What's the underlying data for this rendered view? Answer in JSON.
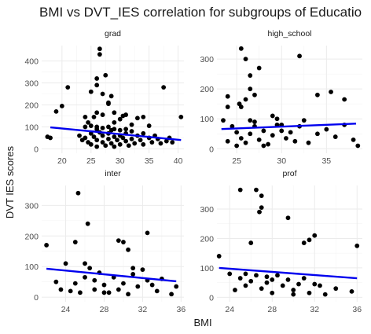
{
  "chart_data": {
    "type": "scatter",
    "title": "BMI vs DVT_IES correlation for subgroups of Educatio",
    "xlabel": "BMI",
    "ylabel": "DVT IES scores",
    "point_color": "#000000",
    "fit_color": "#0000ee",
    "grid": true,
    "facets": [
      {
        "label": "grad",
        "xlim": [
          16.5,
          41
        ],
        "ylim": [
          -20,
          470
        ],
        "x_ticks": [
          20,
          25,
          30,
          35,
          40
        ],
        "y_ticks": [
          0,
          100,
          200,
          300,
          400
        ],
        "fit": {
          "x": [
            18,
            40.5
          ],
          "y": [
            98,
            40
          ]
        },
        "points": [
          [
            18,
            50
          ],
          [
            19,
            170
          ],
          [
            21,
            280
          ],
          [
            20,
            195
          ],
          [
            24,
            145
          ],
          [
            25,
            260
          ],
          [
            26,
            290
          ],
          [
            26,
            320
          ],
          [
            26.5,
            430
          ],
          [
            26.5,
            455
          ],
          [
            27.5,
            335
          ],
          [
            27,
            250
          ],
          [
            28,
            210
          ],
          [
            28,
            205
          ],
          [
            28.5,
            240
          ],
          [
            29,
            165
          ],
          [
            26,
            165
          ],
          [
            27,
            155
          ],
          [
            25.5,
            145
          ],
          [
            24.5,
            120
          ],
          [
            29,
            120
          ],
          [
            30,
            135
          ],
          [
            30.5,
            150
          ],
          [
            31,
            155
          ],
          [
            33,
            140
          ],
          [
            34,
            145
          ],
          [
            37.5,
            280
          ],
          [
            40.5,
            145
          ],
          [
            32,
            110
          ],
          [
            35,
            105
          ],
          [
            24,
            100
          ],
          [
            25,
            105
          ],
          [
            26,
            100
          ],
          [
            27,
            95
          ],
          [
            28,
            100
          ],
          [
            29,
            90
          ],
          [
            30,
            85
          ],
          [
            31,
            90
          ],
          [
            26,
            90
          ],
          [
            28.5,
            85
          ],
          [
            23,
            60
          ],
          [
            23.5,
            40
          ],
          [
            24,
            50
          ],
          [
            24.5,
            30
          ],
          [
            25,
            70
          ],
          [
            25,
            20
          ],
          [
            25.5,
            55
          ],
          [
            26,
            40
          ],
          [
            26,
            10
          ],
          [
            26.5,
            75
          ],
          [
            27,
            30
          ],
          [
            27,
            60
          ],
          [
            27.5,
            15
          ],
          [
            28,
            45
          ],
          [
            28,
            70
          ],
          [
            28.5,
            25
          ],
          [
            29,
            55
          ],
          [
            29,
            10
          ],
          [
            29.5,
            40
          ],
          [
            30,
            60
          ],
          [
            30,
            20
          ],
          [
            30.5,
            50
          ],
          [
            31,
            35
          ],
          [
            31,
            70
          ],
          [
            31.5,
            15
          ],
          [
            32,
            45
          ],
          [
            32,
            80
          ],
          [
            32.5,
            25
          ],
          [
            33,
            60
          ],
          [
            33.5,
            40
          ],
          [
            34,
            20
          ],
          [
            34,
            70
          ],
          [
            35,
            50
          ],
          [
            35.5,
            30
          ],
          [
            36,
            60
          ],
          [
            36.5,
            45
          ],
          [
            37,
            25
          ],
          [
            38,
            35
          ],
          [
            38.5,
            50
          ],
          [
            39,
            30
          ],
          [
            17.5,
            55
          ]
        ]
      },
      {
        "label": "high_school",
        "xlim": [
          22.8,
          39
        ],
        "ylim": [
          -15,
          345
        ],
        "x_ticks": [
          25,
          30,
          35
        ],
        "y_ticks": [
          0,
          100,
          200,
          300
        ],
        "fit": {
          "x": [
            23.3,
            38.3
          ],
          "y": [
            66,
            84
          ]
        },
        "points": [
          [
            25.5,
            335
          ],
          [
            26,
            300
          ],
          [
            26.5,
            245
          ],
          [
            27.5,
            270
          ],
          [
            32,
            310
          ],
          [
            24,
            175
          ],
          [
            25.5,
            140
          ],
          [
            25.3,
            150
          ],
          [
            26,
            165
          ],
          [
            26.5,
            200
          ],
          [
            27,
            180
          ],
          [
            29.5,
            80
          ],
          [
            29,
            110
          ],
          [
            34,
            180
          ],
          [
            35.5,
            190
          ],
          [
            37,
            165
          ],
          [
            23.5,
            95
          ],
          [
            24,
            140
          ],
          [
            24.5,
            75
          ],
          [
            25,
            55
          ],
          [
            25.5,
            35
          ],
          [
            26,
            20
          ],
          [
            26.5,
            50
          ],
          [
            27,
            75
          ],
          [
            27.5,
            30
          ],
          [
            28,
            60
          ],
          [
            28.5,
            15
          ],
          [
            29,
            45
          ],
          [
            30,
            80
          ],
          [
            30.5,
            35
          ],
          [
            31,
            55
          ],
          [
            31.5,
            25
          ],
          [
            32,
            75
          ],
          [
            33,
            20
          ],
          [
            34,
            50
          ],
          [
            35,
            65
          ],
          [
            36,
            40
          ],
          [
            37,
            80
          ],
          [
            38,
            30
          ],
          [
            38.5,
            10
          ],
          [
            28,
            10
          ],
          [
            24,
            25
          ],
          [
            25,
            10
          ],
          [
            27,
            90
          ],
          [
            29.5,
            100
          ],
          [
            32.5,
            95
          ],
          [
            26.5,
            95
          ],
          [
            30,
            60
          ]
        ]
      },
      {
        "label": "inter",
        "xlim": [
          21.5,
          36.3
        ],
        "ylim": [
          -15,
          365
        ],
        "x_ticks": [
          24,
          28,
          32,
          36
        ],
        "y_ticks": [
          0,
          100,
          200,
          300
        ],
        "fit": {
          "x": [
            22,
            35.5
          ],
          "y": [
            93,
            52
          ]
        },
        "points": [
          [
            25.3,
            340
          ],
          [
            26.3,
            240
          ],
          [
            25,
            180
          ],
          [
            29.5,
            185
          ],
          [
            30,
            180
          ],
          [
            30.5,
            155
          ],
          [
            32.5,
            210
          ],
          [
            22,
            170
          ],
          [
            24,
            110
          ],
          [
            26,
            110
          ],
          [
            26.5,
            95
          ],
          [
            27.5,
            80
          ],
          [
            27,
            55
          ],
          [
            23,
            50
          ],
          [
            24.5,
            20
          ],
          [
            25,
            45
          ],
          [
            25.5,
            15
          ],
          [
            26,
            65
          ],
          [
            27,
            25
          ],
          [
            28,
            40
          ],
          [
            28.5,
            15
          ],
          [
            29,
            65
          ],
          [
            29.5,
            25
          ],
          [
            30,
            45
          ],
          [
            30.5,
            10
          ],
          [
            31,
            75
          ],
          [
            31.5,
            35
          ],
          [
            32,
            90
          ],
          [
            32.5,
            55
          ],
          [
            33,
            40
          ],
          [
            33.5,
            20
          ],
          [
            34,
            60
          ],
          [
            35,
            10
          ],
          [
            35.5,
            35
          ],
          [
            23.5,
            25
          ],
          [
            28,
            15
          ],
          [
            31,
            95
          ]
        ]
      },
      {
        "label": "prof",
        "xlim": [
          22.8,
          36.5
        ],
        "ylim": [
          -15,
          380
        ],
        "x_ticks": [
          24,
          28,
          32,
          36
        ],
        "y_ticks": [
          0,
          100,
          200,
          300
        ],
        "fit": {
          "x": [
            23,
            36
          ],
          "y": [
            100,
            65
          ]
        },
        "points": [
          [
            25,
            365
          ],
          [
            26.5,
            365
          ],
          [
            27,
            345
          ],
          [
            27,
            305
          ],
          [
            26.8,
            290
          ],
          [
            29.5,
            270
          ],
          [
            31,
            185
          ],
          [
            31.5,
            195
          ],
          [
            32,
            210
          ],
          [
            36,
            175
          ],
          [
            23,
            140
          ],
          [
            26,
            185
          ],
          [
            24,
            80
          ],
          [
            25,
            65
          ],
          [
            25.5,
            80
          ],
          [
            26,
            55
          ],
          [
            26.5,
            75
          ],
          [
            27,
            30
          ],
          [
            27.5,
            50
          ],
          [
            28,
            15
          ],
          [
            28.5,
            75
          ],
          [
            29,
            40
          ],
          [
            29.5,
            60
          ],
          [
            30,
            25
          ],
          [
            30.5,
            45
          ],
          [
            31,
            65
          ],
          [
            31.5,
            15
          ],
          [
            32,
            45
          ],
          [
            32.5,
            40
          ],
          [
            33,
            10
          ],
          [
            34,
            30
          ],
          [
            35.5,
            20
          ],
          [
            24.5,
            25
          ],
          [
            28,
            60
          ],
          [
            30,
            10
          ],
          [
            25.5,
            40
          ],
          [
            27.5,
            70
          ]
        ]
      }
    ]
  }
}
